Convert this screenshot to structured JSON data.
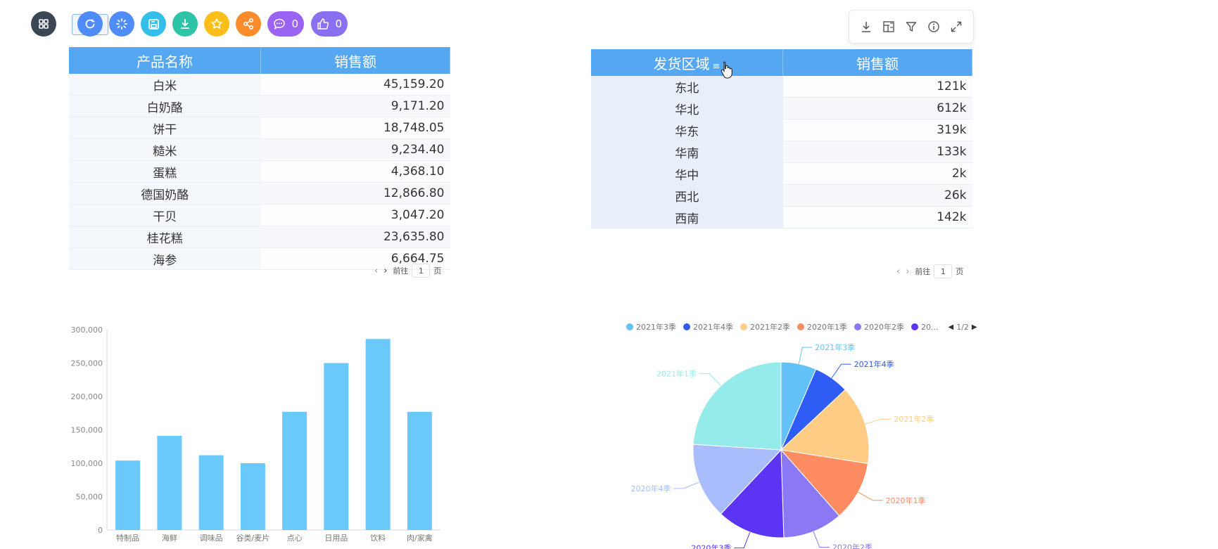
{
  "toolbar": {
    "buttons": [
      {
        "name": "grid",
        "icon": "grid-icon",
        "color": "#3d4655"
      },
      {
        "name": "refresh",
        "icon": "refresh-icon",
        "color": "#4f8cf7"
      },
      {
        "name": "loading",
        "icon": "loading-icon",
        "color": "#4f8cf7"
      },
      {
        "name": "save",
        "icon": "save-icon",
        "color": "#33bfe8"
      },
      {
        "name": "download",
        "icon": "download-icon",
        "color": "#2ec4a8"
      },
      {
        "name": "favorite",
        "icon": "star-icon",
        "color": "#fbbd18"
      },
      {
        "name": "share",
        "icon": "share-icon",
        "color": "#fb8c2b"
      },
      {
        "name": "comment",
        "icon": "comment-icon",
        "color": "#9b63f3",
        "count": "0"
      },
      {
        "name": "like",
        "icon": "thumbs-up-icon",
        "color": "#8a6ff3",
        "count": "0"
      }
    ]
  },
  "panel_actions": [
    "download-icon",
    "table-settings-icon",
    "filter-icon",
    "info-icon",
    "fullscreen-icon"
  ],
  "table1": {
    "headers": [
      "产品名称",
      "销售额"
    ],
    "rows": [
      [
        "白米",
        "45,159.20"
      ],
      [
        "白奶酪",
        "9,171.20"
      ],
      [
        "饼干",
        "18,748.05"
      ],
      [
        "糙米",
        "9,234.40"
      ],
      [
        "蛋糕",
        "4,368.10"
      ],
      [
        "德国奶酪",
        "12,866.80"
      ],
      [
        "干贝",
        "3,047.20"
      ],
      [
        "桂花糕",
        "23,635.80"
      ],
      [
        "海参",
        "6,664.75"
      ]
    ],
    "pager": {
      "prev": "‹",
      "next": "›",
      "goto": "前往",
      "page": "1",
      "suffix": "页"
    }
  },
  "table2": {
    "headers": [
      "发货区域",
      "销售额"
    ],
    "sort_icon": "≡",
    "rows": [
      [
        "东北",
        "121k"
      ],
      [
        "华北",
        "612k"
      ],
      [
        "华东",
        "319k"
      ],
      [
        "华南",
        "133k"
      ],
      [
        "华中",
        "2k"
      ],
      [
        "西北",
        "26k"
      ],
      [
        "西南",
        "142k"
      ]
    ],
    "pager": {
      "prev": "‹",
      "next": "›",
      "goto": "前往",
      "page": "1",
      "suffix": "页"
    }
  },
  "chart_data": [
    {
      "type": "bar",
      "categories": [
        "特制品",
        "海鲜",
        "调味品",
        "谷类/麦片",
        "点心",
        "日用品",
        "饮料",
        "肉/家禽"
      ],
      "values": [
        104000,
        141000,
        112000,
        100000,
        177000,
        250000,
        286000,
        177000
      ],
      "title": "",
      "xlabel": "",
      "ylabel": "",
      "ylim": [
        0,
        300000
      ],
      "yticks": [
        "0",
        "50,000",
        "100,000",
        "150,000",
        "200,000",
        "250,000",
        "300,000"
      ],
      "color": "#6ac8fb",
      "grid": false
    },
    {
      "type": "pie",
      "labels": [
        "2021年3季",
        "2021年4季",
        "2021年2季",
        "2020年1季",
        "2020年2季",
        "2020年3季",
        "2020年4季",
        "2021年1季"
      ],
      "values": [
        6.5,
        6.5,
        14.5,
        11,
        11,
        12.5,
        14,
        24
      ],
      "colors": [
        "#62c2f8",
        "#2f5cf4",
        "#ffcc85",
        "#fe8c62",
        "#8a78f5",
        "#5b35f3",
        "#a9bdfd",
        "#94ebe9"
      ],
      "legend": {
        "position": "top",
        "items": [
          "2021年3季",
          "2021年4季",
          "2021年2季",
          "2020年1季",
          "2020年2季",
          "20..."
        ],
        "page": "1/2"
      }
    }
  ]
}
